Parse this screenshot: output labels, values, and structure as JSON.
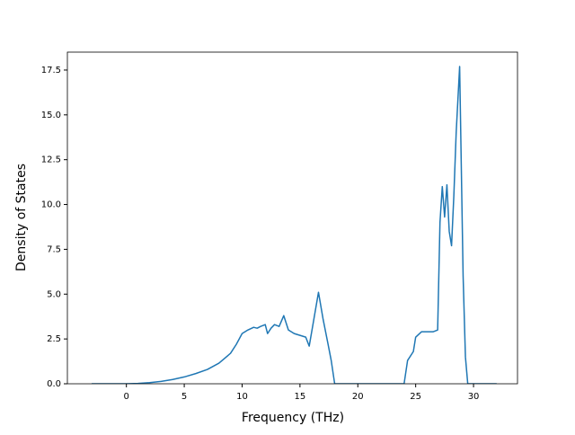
{
  "chart_data": {
    "type": "line",
    "xlabel": "Frequency (THz)",
    "ylabel": "Density of States",
    "series": [
      {
        "color": "#1f77b4",
        "x": [
          -3,
          0,
          1,
          2,
          3,
          4,
          5,
          6,
          7,
          8,
          9,
          9.5,
          10,
          10.5,
          11,
          11.3,
          11.6,
          12,
          12.2,
          12.5,
          12.8,
          13.2,
          13.6,
          14,
          14.5,
          15,
          15.5,
          15.8,
          16.2,
          16.6,
          17,
          17.4,
          17.7,
          18,
          24,
          24.3,
          24.8,
          25,
          25.5,
          26,
          26.5,
          26.9,
          27.1,
          27.3,
          27.5,
          27.7,
          27.9,
          28.1,
          28.3,
          28.5,
          28.8,
          29.1,
          29.3,
          29.5,
          32
        ],
        "values": [
          0,
          0,
          0.02,
          0.06,
          0.13,
          0.24,
          0.38,
          0.57,
          0.8,
          1.15,
          1.7,
          2.2,
          2.8,
          3.0,
          3.15,
          3.1,
          3.2,
          3.3,
          2.8,
          3.1,
          3.3,
          3.2,
          3.8,
          3.0,
          2.8,
          2.7,
          2.6,
          2.1,
          3.6,
          5.1,
          3.6,
          2.3,
          1.3,
          0,
          0,
          1.3,
          1.8,
          2.6,
          2.9,
          2.9,
          2.9,
          3.0,
          9.0,
          11.0,
          9.3,
          11.1,
          8.5,
          7.7,
          10.5,
          14,
          17.7,
          6,
          1.5,
          0,
          0
        ]
      }
    ],
    "xlim": [
      -5.1,
      33.8
    ],
    "xticks": [
      0,
      5,
      10,
      15,
      20,
      25,
      30
    ],
    "ylim": [
      0,
      18.5
    ],
    "yticks": [
      {
        "value": 0,
        "label": "0.0"
      },
      {
        "value": 2.5,
        "label": "2.5"
      },
      {
        "value": 5,
        "label": "5.0"
      },
      {
        "value": 7.5,
        "label": "7.5"
      },
      {
        "value": 10,
        "label": "10.0"
      },
      {
        "value": 12.5,
        "label": "12.5"
      },
      {
        "value": 15,
        "label": "15.0"
      },
      {
        "value": 17.5,
        "label": "17.5"
      }
    ],
    "grid": false
  }
}
